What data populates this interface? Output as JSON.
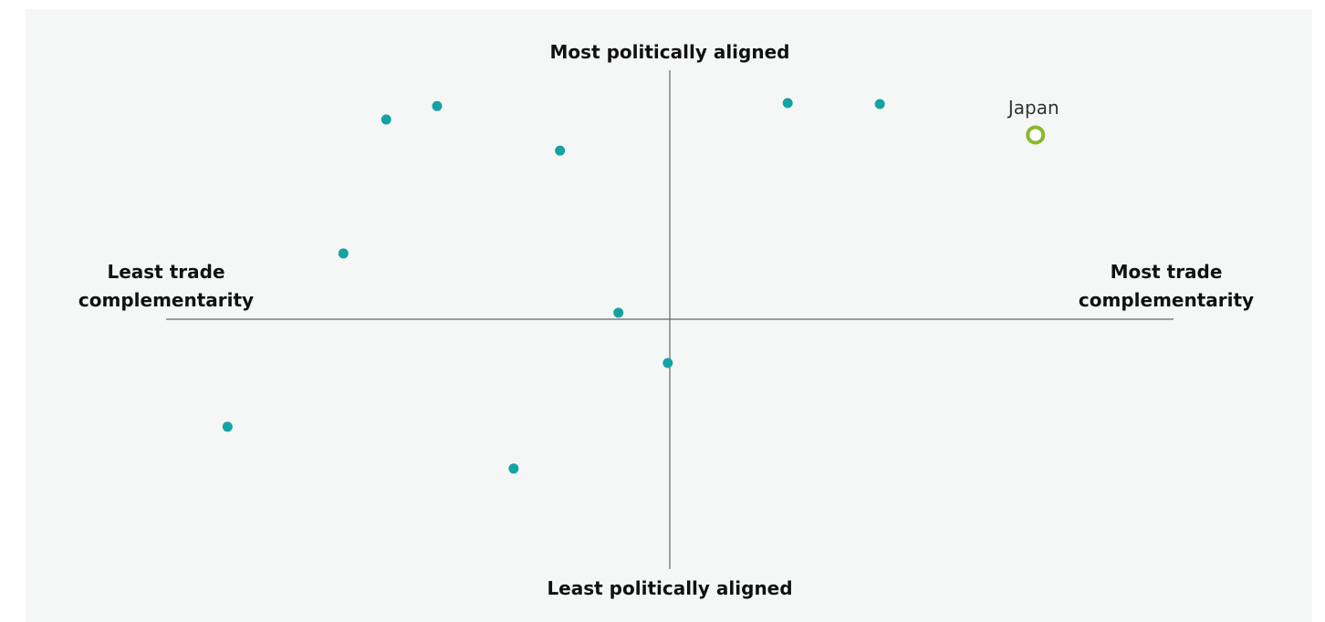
{
  "chart_data": {
    "type": "scatter",
    "title": "",
    "axis_labels": {
      "top": "Most politically aligned",
      "bottom": "Least politically aligned",
      "left": [
        "Least trade",
        "complementarity"
      ],
      "right": [
        "Most trade",
        "complementarity"
      ]
    },
    "xlim": [
      -1,
      1
    ],
    "ylim": [
      -1,
      1
    ],
    "grid": false,
    "colors": {
      "point": "#14a3a3",
      "highlight": "#8ab82c",
      "axis": "#666666"
    },
    "points": [
      {
        "x": -0.563,
        "y": 0.802
      },
      {
        "x": -0.462,
        "y": 0.856
      },
      {
        "x": -0.218,
        "y": 0.677
      },
      {
        "x": 0.234,
        "y": 0.868
      },
      {
        "x": 0.417,
        "y": 0.864
      },
      {
        "x": -0.648,
        "y": 0.264
      },
      {
        "x": -0.102,
        "y": 0.026
      },
      {
        "x": -0.004,
        "y": -0.176
      },
      {
        "x": -0.878,
        "y": -0.432
      },
      {
        "x": -0.31,
        "y": -0.6
      }
    ],
    "highlight_points": [
      {
        "label": "Japan",
        "x": 0.726,
        "y": 0.74
      }
    ]
  }
}
